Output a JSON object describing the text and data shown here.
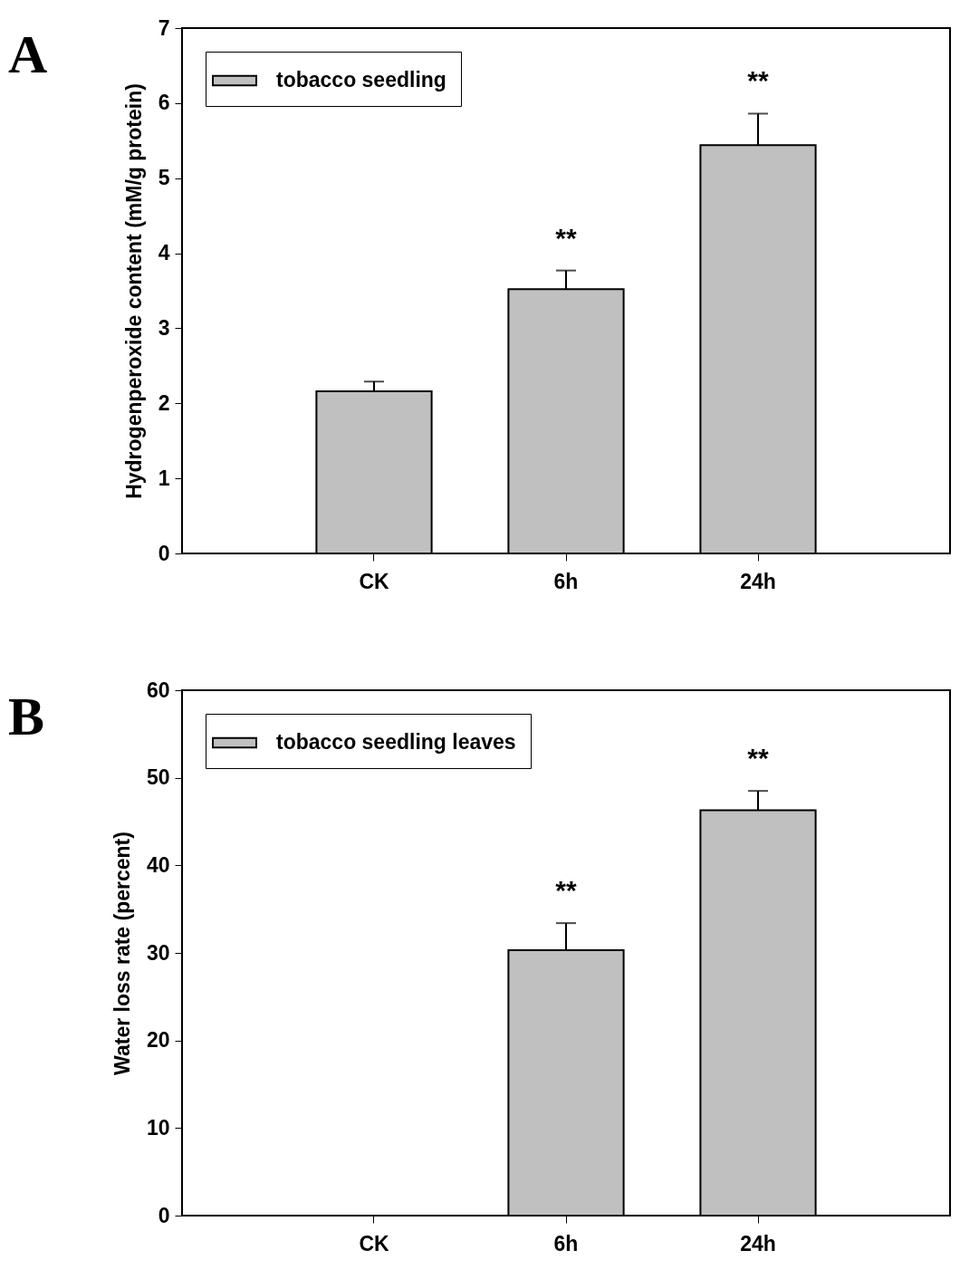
{
  "chart_data": [
    {
      "type": "bar",
      "ylabel": "Hydrogenperoxide content (mM/g protein)",
      "categories": [
        "CK",
        "6h",
        "24h"
      ],
      "series": [
        {
          "name": "tobacco seedling",
          "color": "#c0c0c0",
          "values": [
            2.16,
            3.52,
            5.44
          ],
          "errors": [
            [
              2.16,
              2.29
            ],
            [
              3.52,
              3.77
            ],
            [
              5.44,
              5.86
            ]
          ]
        }
      ],
      "ylim": [
        0,
        7
      ],
      "yticks": [
        0,
        1,
        2,
        3,
        4,
        5,
        6,
        7
      ],
      "grid": false,
      "legend": "top left",
      "annotations": [
        "A",
        {
          "text": "**",
          "x": "6h",
          "y": 3.77
        },
        {
          "text": "**",
          "x": "24h",
          "y": 5.86
        }
      ]
    },
    {
      "type": "bar",
      "ylabel": "Water loss rate (percent)",
      "categories": [
        "CK",
        "6h",
        "24h"
      ],
      "series": [
        {
          "name": "tobacco seedling leaves",
          "color": "#c0c0c0",
          "values": [
            0,
            30.3,
            46.3
          ],
          "errors": [
            null,
            [
              30.3,
              33.4
            ],
            [
              46.3,
              48.5
            ]
          ]
        }
      ],
      "ylim": [
        0,
        60
      ],
      "yticks": [
        0,
        10,
        20,
        30,
        40,
        50,
        60
      ],
      "grid": false,
      "legend": "top left",
      "annotations": [
        "B",
        {
          "text": "**",
          "x": "6h",
          "y": 33.4
        },
        {
          "text": "**",
          "x": "24h",
          "y": 48.5
        }
      ]
    }
  ]
}
